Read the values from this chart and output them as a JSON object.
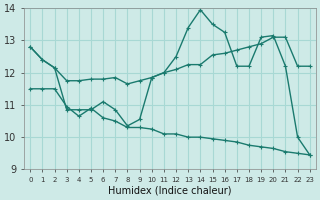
{
  "xlabel": "Humidex (Indice chaleur)",
  "bg_color": "#ceeae7",
  "grid_color": "#a8d8d4",
  "line_color": "#1a7a6e",
  "xlim": [
    -0.5,
    23.5
  ],
  "ylim": [
    9,
    14
  ],
  "yticks": [
    9,
    10,
    11,
    12,
    13,
    14
  ],
  "xticks": [
    0,
    1,
    2,
    3,
    4,
    5,
    6,
    7,
    8,
    9,
    10,
    11,
    12,
    13,
    14,
    15,
    16,
    17,
    18,
    19,
    20,
    21,
    22,
    23
  ],
  "line1_x": [
    0,
    1,
    2,
    3,
    4,
    5,
    6,
    7,
    8,
    9,
    10,
    11,
    12,
    13,
    14,
    15,
    16,
    17,
    18,
    19,
    20,
    21,
    22,
    23
  ],
  "line1_y": [
    12.8,
    12.4,
    12.15,
    11.75,
    11.75,
    11.8,
    11.8,
    11.85,
    11.65,
    11.75,
    11.85,
    12.0,
    12.1,
    12.25,
    12.25,
    12.55,
    12.6,
    12.7,
    12.8,
    12.9,
    13.1,
    13.1,
    12.2,
    12.2
  ],
  "line2_x": [
    0,
    1,
    2,
    3,
    4,
    5,
    6,
    7,
    8,
    9,
    10,
    11,
    12,
    13,
    14,
    15,
    16,
    17,
    18,
    19,
    20,
    21,
    22,
    23
  ],
  "line2_y": [
    12.8,
    12.4,
    12.15,
    10.85,
    10.85,
    10.85,
    11.1,
    10.85,
    10.35,
    10.55,
    11.85,
    12.0,
    12.5,
    13.4,
    13.95,
    13.5,
    13.25,
    12.2,
    12.2,
    13.1,
    13.15,
    12.2,
    10.0,
    9.45
  ],
  "line3_x": [
    0,
    1,
    2,
    3,
    4,
    5,
    6,
    7,
    8,
    9,
    10,
    11,
    12,
    13,
    14,
    15,
    16,
    17,
    18,
    19,
    20,
    21,
    22,
    23
  ],
  "line3_y": [
    11.5,
    11.5,
    11.5,
    10.95,
    10.65,
    10.9,
    10.6,
    10.5,
    10.3,
    10.3,
    10.25,
    10.1,
    10.1,
    10.0,
    10.0,
    9.95,
    9.9,
    9.85,
    9.75,
    9.7,
    9.65,
    9.55,
    9.5,
    9.45
  ]
}
